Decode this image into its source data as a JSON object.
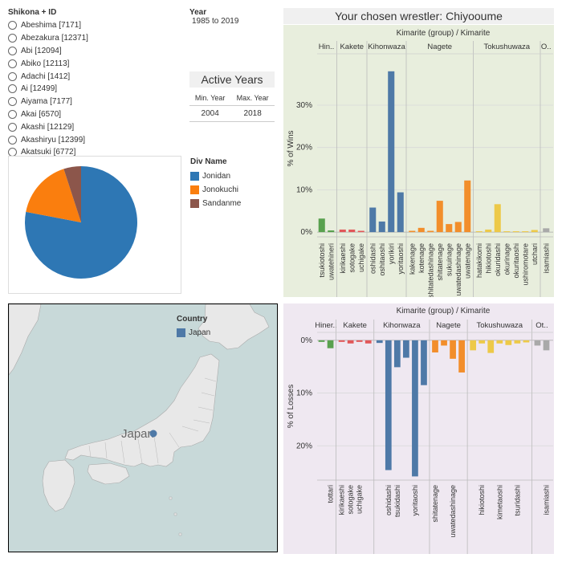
{
  "wrestler_filter": {
    "header": "Shikona + ID",
    "options": [
      "Abeshima [7171]",
      "Abezakura [12371]",
      "Abi [12094]",
      "Abiko [12113]",
      "Adachi [1412]",
      "Ai [12499]",
      "Aiyama [7177]",
      "Akai [6570]",
      "Akashi [12129]",
      "Akashiryu [12399]",
      "Akatsuki [6772]"
    ]
  },
  "year_filter": {
    "header": "Year",
    "range": "1985 to 2019"
  },
  "active_years": {
    "title": "Active Years",
    "min_label": "Min. Year",
    "max_label": "Max. Year",
    "min": "2004",
    "max": "2018"
  },
  "div_legend": {
    "header": "Div Name",
    "items": [
      {
        "label": "Jonidan",
        "color": "#2e77b4"
      },
      {
        "label": "Jonokuchi",
        "color": "#fa7e0e"
      },
      {
        "label": "Sandanme",
        "color": "#8c564b"
      }
    ]
  },
  "pie_chart": {
    "chart_data": {
      "type": "pie",
      "slices": [
        {
          "label": "Jonidan",
          "value": 0.78,
          "color": "#2e77b4"
        },
        {
          "label": "Jonokuchi",
          "value": 0.17,
          "color": "#fa7e0e"
        },
        {
          "label": "Sandanme",
          "value": 0.05,
          "color": "#8c564b"
        }
      ]
    }
  },
  "wins_chart": {
    "title": "Your chosen wrestler:  Chiyooume",
    "header": "Kimarite (group)  /  Kimarite",
    "ylabel": "% of Wins",
    "bg": "#e8eedd",
    "ticks": [
      {
        "v": 0,
        "label": "0%"
      },
      {
        "v": 10,
        "label": "10%"
      },
      {
        "v": 20,
        "label": "20%"
      },
      {
        "v": 30,
        "label": "30%"
      }
    ],
    "chart_data": {
      "type": "bar",
      "ylim": [
        -1.5,
        41
      ],
      "groups": [
        {
          "name": "Hin..",
          "color": "#59a14f",
          "items": [
            {
              "k": "tsukiotoshi",
              "v": 3.2
            },
            {
              "k": "uwatehineri",
              "v": 0.4
            }
          ]
        },
        {
          "name": "Kakete",
          "color": "#e15759",
          "items": [
            {
              "k": "kirikaeshi",
              "v": 0.6
            },
            {
              "k": "sotogake",
              "v": 0.6
            },
            {
              "k": "uchigake",
              "v": 0.3
            }
          ]
        },
        {
          "name": "Kihonwaza",
          "color": "#4e79a7",
          "items": [
            {
              "k": "oshidashi",
              "v": 5.8
            },
            {
              "k": "oshitaoshi",
              "v": 2.5
            },
            {
              "k": "yorikiri",
              "v": 38
            },
            {
              "k": "yoritaoshi",
              "v": 9.4
            }
          ]
        },
        {
          "name": "Nagete",
          "color": "#f28e2b",
          "items": [
            {
              "k": "kakenage",
              "v": 0.3
            },
            {
              "k": "kotenage",
              "v": 1.0
            },
            {
              "k": "shitatedashinage",
              "v": 0.3
            },
            {
              "k": "shitatenage",
              "v": 7.4
            },
            {
              "k": "sukuinage",
              "v": 1.9
            },
            {
              "k": "uwatedashinage",
              "v": 2.4
            },
            {
              "k": "uwatenage",
              "v": 12.2
            }
          ]
        },
        {
          "name": "Tokushuwaza",
          "color": "#edc948",
          "items": [
            {
              "k": "hatakikomi",
              "v": 0.2
            },
            {
              "k": "hikiotoshi",
              "v": 0.6
            },
            {
              "k": "okuridashi",
              "v": 6.6
            },
            {
              "k": "okurinage",
              "v": 0.2
            },
            {
              "k": "okuritaoshi",
              "v": 0.2
            },
            {
              "k": "ushiromotare",
              "v": 0.2
            },
            {
              "k": "utchari",
              "v": 0.5
            }
          ]
        },
        {
          "name": "O..",
          "color": "#a9a9a9",
          "items": [
            {
              "k": "isamiashi",
              "v": 0.9
            }
          ]
        }
      ]
    }
  },
  "losses_chart": {
    "header": "Kimarite (group)  /  Kimarite",
    "ylabel": "% of Losses",
    "bg": "#efe8f1",
    "ticks": [
      {
        "v": 0,
        "label": "0%"
      },
      {
        "v": 10,
        "label": "10%"
      },
      {
        "v": 20,
        "label": "20%"
      }
    ],
    "chart_data": {
      "type": "bar",
      "ylim": [
        -1.5,
        26.5
      ],
      "groups": [
        {
          "name": "Hiner..",
          "color": "#59a14f",
          "items": [
            {
              "k": "",
              "v": 0.3
            },
            {
              "k": "tottari",
              "v": 1.5
            }
          ]
        },
        {
          "name": "Kakete",
          "color": "#e15759",
          "items": [
            {
              "k": "kirikaeshi",
              "v": 0.3
            },
            {
              "k": "sotogake",
              "v": 0.6
            },
            {
              "k": "uchigake",
              "v": 0.3
            },
            {
              "k": "",
              "v": 0.6
            }
          ]
        },
        {
          "name": "Kihonwaza",
          "color": "#4e79a7",
          "items": [
            {
              "k": "",
              "v": 0.5
            },
            {
              "k": "oshidashi",
              "v": 24.6
            },
            {
              "k": "tsukidashi",
              "v": 5.1
            },
            {
              "k": "",
              "v": 3.3
            },
            {
              "k": "yoritaoshi",
              "v": 25.8
            },
            {
              "k": "",
              "v": 8.5
            }
          ]
        },
        {
          "name": "Nagete",
          "color": "#f28e2b",
          "items": [
            {
              "k": "shitatenage",
              "v": 2.3
            },
            {
              "k": "",
              "v": 1.0
            },
            {
              "k": "uwatedashinage",
              "v": 3.5
            },
            {
              "k": "",
              "v": 6.1
            }
          ]
        },
        {
          "name": "Tokushuwaza",
          "color": "#edc948",
          "items": [
            {
              "k": "",
              "v": 1.9
            },
            {
              "k": "hikiotoshi",
              "v": 0.6
            },
            {
              "k": "",
              "v": 2.4
            },
            {
              "k": "kimetaoshi",
              "v": 0.6
            },
            {
              "k": "",
              "v": 0.9
            },
            {
              "k": "tsuridashi",
              "v": 0.6
            },
            {
              "k": "",
              "v": 0.4
            }
          ]
        },
        {
          "name": "Ot..",
          "color": "#a9a9a9",
          "items": [
            {
              "k": "",
              "v": 1.0
            },
            {
              "k": "isamiashi",
              "v": 1.9
            }
          ]
        }
      ]
    }
  },
  "map": {
    "legend_header": "Country",
    "legend_item": "Japan",
    "marker_label": "Japan",
    "marker_color": "#4e79a7",
    "land_color": "#e8e8e8",
    "water_color": "#c8d9d9"
  }
}
